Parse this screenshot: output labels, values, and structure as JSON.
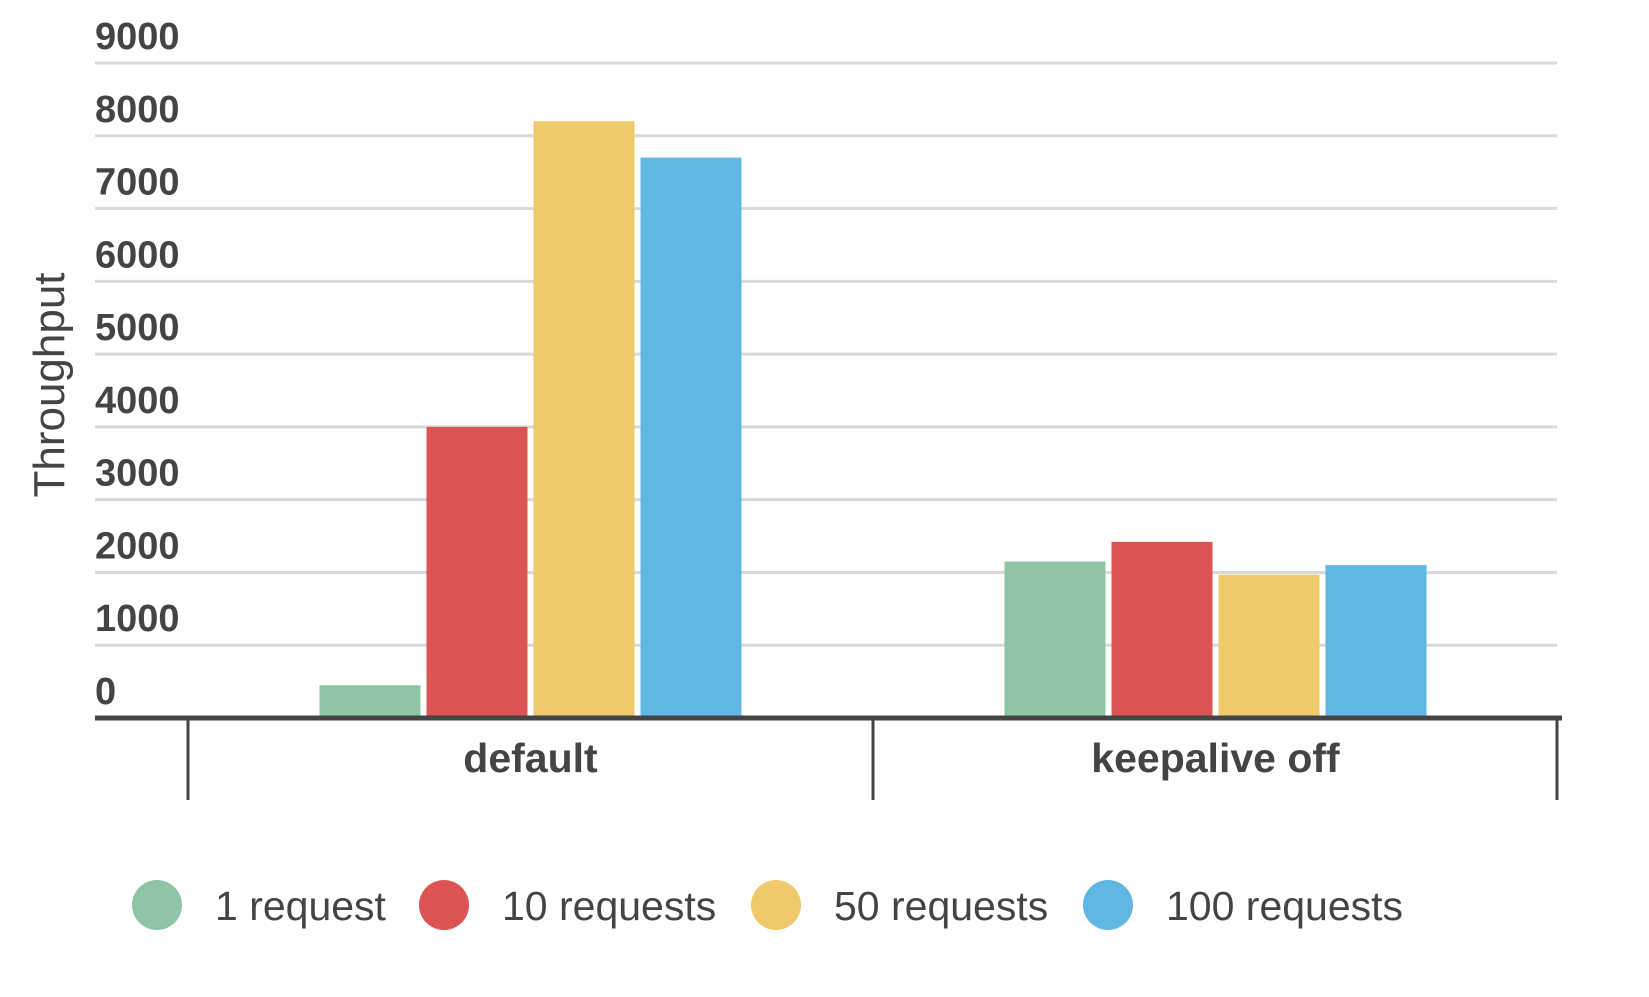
{
  "chart_data": {
    "type": "bar",
    "title": "",
    "xlabel": "",
    "ylabel": "Throughput",
    "ylim": [
      0,
      9000
    ],
    "yticks": [
      0,
      1000,
      2000,
      3000,
      4000,
      5000,
      6000,
      7000,
      8000,
      9000
    ],
    "grid": true,
    "legend_position": "bottom",
    "categories": [
      "default",
      "keepalive off"
    ],
    "series": [
      {
        "name": "1 request",
        "color": "#8fc4a7",
        "values": [
          450,
          2150
        ]
      },
      {
        "name": "10 requests",
        "color": "#dc5353",
        "values": [
          4000,
          2420
        ]
      },
      {
        "name": "50 requests",
        "color": "#efca6a",
        "values": [
          8200,
          1970
        ]
      },
      {
        "name": "100 requests",
        "color": "#61b7e4",
        "values": [
          7700,
          2100
        ]
      }
    ]
  }
}
